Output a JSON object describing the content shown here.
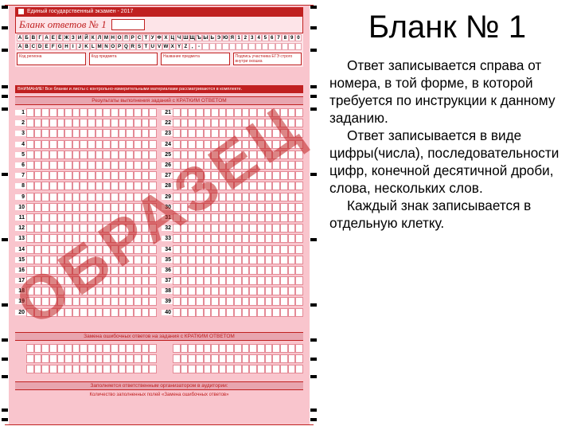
{
  "form": {
    "top_title": "Единый государственный экзамен - 2017",
    "subtitle": "Бланк ответов № 1",
    "alphabet": [
      "А",
      "Б",
      "В",
      "Г",
      "А",
      "Е",
      "Ё",
      "Ж",
      "З",
      "И",
      "Й",
      "К",
      "Л",
      "М",
      "Н",
      "О",
      "П",
      "Р",
      "С",
      "Т",
      "У",
      "Ф",
      "Х",
      "Ц",
      "Ч",
      "Ш",
      "Щ",
      "Ъ",
      "Ы",
      "Ь",
      "Э",
      "Ю",
      "Я",
      "1",
      "2",
      "3",
      "4",
      "5",
      "6",
      "7",
      "8",
      "9",
      "0"
    ],
    "latin": [
      "A",
      "B",
      "C",
      "D",
      "E",
      "F",
      "G",
      "H",
      "I",
      "J",
      "K",
      "L",
      "M",
      "N",
      "O",
      "P",
      "Q",
      "R",
      "S",
      "T",
      "U",
      "V",
      "W",
      "X",
      "Y",
      "Z",
      ",",
      "-",
      "",
      "",
      "",
      "",
      "",
      "",
      "",
      "",
      "",
      "",
      "",
      "",
      "",
      "",
      ""
    ],
    "mini_labels": [
      "Код региона",
      "Код предмета",
      "Название предмета",
      "Подпись участника ЕГЭ строго внутри окошка"
    ],
    "warn": "ВНИМАНИЕ! Все бланки и листы с контрольно-измерительными материалами рассматриваются в комплекте.",
    "section1": "Результаты выполнения заданий с КРАТКИМ ОТВЕТОМ",
    "section2": "Замена ошибочных ответов на задания с КРАТКИМ ОТВЕТОМ",
    "bottom1": "Заполняется ответственным организатором в аудитории:",
    "bottom2": "Количество заполненных полей «Замена ошибочных ответов»",
    "rows_main": 20,
    "cells_per_row": 17,
    "rows_replace": 3,
    "watermark": "ОБРАЗЕЦ",
    "colors": {
      "pink_bg": "#f9c5cd",
      "pink_light": "#fde4e8",
      "red": "#c02020",
      "cell_border": "#e48a96",
      "section_bg": "#e8a5af"
    },
    "marker_positions": [
      0,
      26,
      54,
      100,
      112,
      128,
      210,
      292,
      374,
      418,
      442,
      464,
      506,
      518
    ]
  },
  "text": {
    "heading": "Бланк № 1",
    "p1": "Ответ записывается справа от номера, в той форме, в которой требуется по инструкции к данному заданию.",
    "p2": "Ответ записывается в виде цифры(числа), последовательности цифр, конечной десятичной дроби, слова, нескольких слов.",
    "p3": "Каждый знак записывается в отдельную клетку."
  }
}
